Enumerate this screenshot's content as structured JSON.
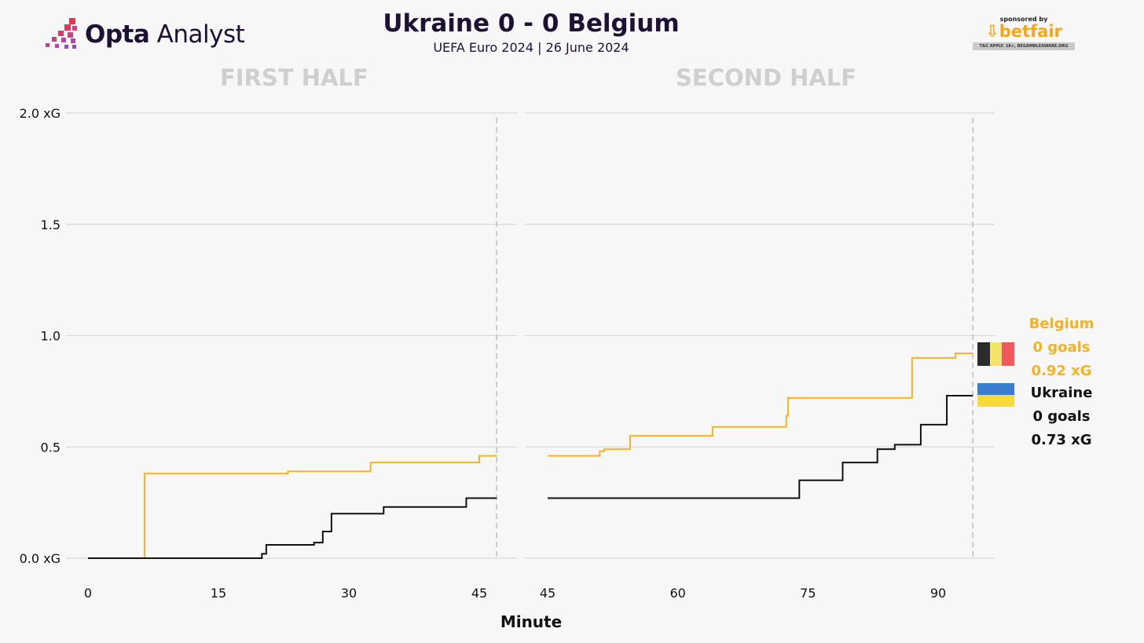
{
  "header": {
    "title": "Ukraine 0 - 0 Belgium",
    "subtitle": "UEFA Euro 2024 | 26 June 2024",
    "logo_bold": "Opta",
    "logo_light": " Analyst",
    "sponsor_by": "sponsored by",
    "sponsor_brand": "betfair",
    "sponsor_terms": "T&C APPLY. 18+, BEGAMBLEAWARE.ORG"
  },
  "chart_data": {
    "type": "line",
    "step": true,
    "panels": [
      {
        "title": "FIRST HALF",
        "xlim": [
          0,
          47
        ],
        "xticks": [
          0,
          15,
          30,
          45
        ],
        "end_marker": 47
      },
      {
        "title": "SECOND HALF",
        "xlim": [
          45,
          94
        ],
        "xticks": [
          45,
          60,
          75,
          90
        ],
        "end_marker": 94
      }
    ],
    "xlabel": "Minute",
    "ylim": [
      0,
      2.0
    ],
    "yticks": [
      {
        "value": 0.0,
        "label": "0.0 xG"
      },
      {
        "value": 0.5,
        "label": "0.5"
      },
      {
        "value": 1.0,
        "label": "1.0"
      },
      {
        "value": 1.5,
        "label": "1.5"
      },
      {
        "value": 2.0,
        "label": "2.0 xG"
      }
    ],
    "grid": true,
    "series": [
      {
        "name": "Belgium",
        "color": "#f3b322",
        "first_half": [
          [
            0,
            0
          ],
          [
            6.5,
            0.38
          ],
          [
            23,
            0.39
          ],
          [
            32.5,
            0.43
          ],
          [
            45,
            0.46
          ],
          [
            47,
            0.46
          ]
        ],
        "second_half": [
          [
            45,
            0.46
          ],
          [
            51,
            0.48
          ],
          [
            51.5,
            0.49
          ],
          [
            54.5,
            0.55
          ],
          [
            64,
            0.59
          ],
          [
            72.5,
            0.64
          ],
          [
            72.7,
            0.72
          ],
          [
            87,
            0.9
          ],
          [
            92,
            0.92
          ],
          [
            94,
            0.92
          ]
        ]
      },
      {
        "name": "Ukraine",
        "color": "#111111",
        "first_half": [
          [
            0,
            0
          ],
          [
            20,
            0.02
          ],
          [
            20.5,
            0.06
          ],
          [
            26,
            0.07
          ],
          [
            27,
            0.12
          ],
          [
            28,
            0.2
          ],
          [
            34,
            0.23
          ],
          [
            43.5,
            0.27
          ],
          [
            47,
            0.27
          ]
        ],
        "second_half": [
          [
            45,
            0.27
          ],
          [
            74,
            0.35
          ],
          [
            79,
            0.43
          ],
          [
            83,
            0.49
          ],
          [
            85,
            0.51
          ],
          [
            88,
            0.6
          ],
          [
            91,
            0.73
          ],
          [
            94,
            0.73
          ]
        ]
      }
    ]
  },
  "legend": {
    "belgium": {
      "name": "Belgium",
      "goals": "0 goals",
      "xg": "0.92 xG",
      "color": "#f3b322",
      "flag": [
        "#2b2b2b",
        "#f5e26b",
        "#ef5a5f"
      ]
    },
    "ukraine": {
      "name": "Ukraine",
      "goals": "0 goals",
      "xg": "0.73 xG",
      "color": "#111111",
      "flag": [
        "#3a7fcd",
        "#f7d93a"
      ]
    }
  }
}
